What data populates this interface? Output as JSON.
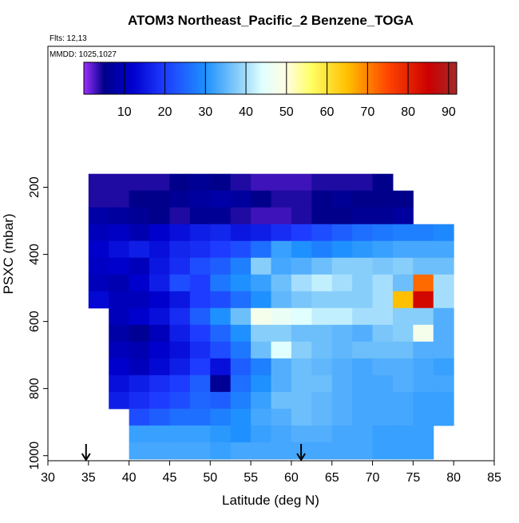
{
  "chart_data": {
    "type": "heatmap",
    "title": "ATOM3 Northeast_Pacific_2 Benzene_TOGA",
    "notes": [
      "Flts: 12,13",
      "MMDD: 1025,1027"
    ],
    "x_label": "Latitude (deg N)",
    "y_label": "PSXC (mbar)",
    "xlim": [
      30,
      85
    ],
    "xticks": [
      30,
      35,
      40,
      45,
      50,
      55,
      60,
      65,
      70,
      75,
      80,
      85
    ],
    "ylim": [
      1015,
      -220
    ],
    "yticks": [
      200,
      400,
      600,
      800,
      1000
    ],
    "x_bins": [
      35,
      37.5,
      40,
      42.5,
      45,
      47.5,
      50,
      52.5,
      55,
      57.5,
      60,
      62.5,
      65,
      67.5,
      70,
      72.5,
      75,
      77.5,
      80
    ],
    "y_bins": [
      160,
      210,
      260,
      310,
      360,
      410,
      460,
      510,
      560,
      610,
      660,
      710,
      760,
      810,
      860,
      910,
      960,
      1010
    ],
    "values": [
      [
        4,
        4,
        4,
        4,
        5,
        6,
        5,
        4,
        3,
        3,
        3,
        4,
        4,
        4,
        5,
        null,
        null,
        null
      ],
      [
        4,
        4,
        5,
        5,
        6,
        7,
        8,
        7,
        5,
        4,
        4,
        5,
        6,
        5,
        5,
        5,
        null,
        null
      ],
      [
        8,
        7,
        6,
        5,
        4,
        6,
        6,
        4,
        3,
        3,
        4,
        5,
        5,
        6,
        6,
        7,
        null,
        null
      ],
      [
        10,
        11,
        9,
        12,
        14,
        16,
        17,
        15,
        16,
        18,
        20,
        22,
        24,
        26,
        27,
        28,
        28,
        29
      ],
      [
        12,
        14,
        16,
        14,
        17,
        18,
        20,
        22,
        26,
        32,
        30,
        28,
        30,
        31,
        32,
        33,
        33,
        33
      ],
      [
        11,
        12,
        10,
        15,
        18,
        22,
        24,
        28,
        38,
        33,
        34,
        36,
        38,
        38,
        37,
        38,
        36,
        36
      ],
      [
        10,
        9,
        12,
        16,
        22,
        20,
        27,
        30,
        32,
        36,
        40,
        42,
        40,
        38,
        40,
        36,
        72,
        40
      ],
      [
        13,
        10,
        10,
        12,
        15,
        20,
        22,
        26,
        30,
        35,
        37,
        38,
        38,
        38,
        40,
        65,
        84,
        40
      ],
      [
        null,
        10,
        12,
        14,
        18,
        24,
        30,
        36,
        48,
        46,
        44,
        42,
        42,
        40,
        40,
        38,
        38,
        34
      ],
      [
        null,
        8,
        6,
        10,
        16,
        20,
        25,
        30,
        38,
        38,
        36,
        36,
        35,
        34,
        37,
        38,
        48,
        34
      ],
      [
        null,
        10,
        9,
        12,
        14,
        18,
        22,
        27,
        36,
        44,
        38,
        36,
        35,
        36,
        36,
        36,
        34,
        34
      ],
      [
        null,
        12,
        10,
        13,
        16,
        20,
        14,
        24,
        28,
        34,
        36,
        35,
        34,
        33,
        34,
        34,
        33,
        32
      ],
      [
        null,
        14,
        16,
        18,
        20,
        24,
        6,
        26,
        30,
        34,
        36,
        36,
        34,
        33,
        33,
        34,
        33,
        33
      ],
      [
        null,
        16,
        18,
        20,
        22,
        25,
        24,
        28,
        32,
        36,
        36,
        35,
        34,
        33,
        33,
        33,
        32,
        32
      ],
      [
        null,
        null,
        22,
        24,
        26,
        26,
        28,
        30,
        33,
        34,
        36,
        35,
        34,
        33,
        33,
        33,
        32,
        32
      ],
      [
        null,
        null,
        32,
        32,
        32,
        32,
        31,
        30,
        32,
        33,
        34,
        34,
        33,
        33,
        32,
        32,
        32,
        null
      ],
      [
        null,
        null,
        33,
        33,
        33,
        33,
        32,
        33,
        33,
        33,
        33,
        33,
        33,
        33,
        32,
        32,
        32,
        null
      ]
    ],
    "arrows": [
      34.7,
      61.2
    ],
    "colorbar": {
      "lim": [
        0,
        92
      ],
      "ticks": [
        10,
        20,
        30,
        40,
        50,
        60,
        70,
        80,
        90
      ],
      "stops": [
        0,
        5,
        12,
        20,
        30,
        38,
        44,
        50,
        56,
        65,
        75,
        85,
        92
      ],
      "colors": [
        "#9b30ff",
        "#00008b",
        "#0000cd",
        "#1e3cff",
        "#1e90ff",
        "#87cefa",
        "#e0ffff",
        "#fffde0",
        "#ffff66",
        "#ffc000",
        "#ff4500",
        "#cc0000",
        "#a52a2a"
      ]
    }
  }
}
